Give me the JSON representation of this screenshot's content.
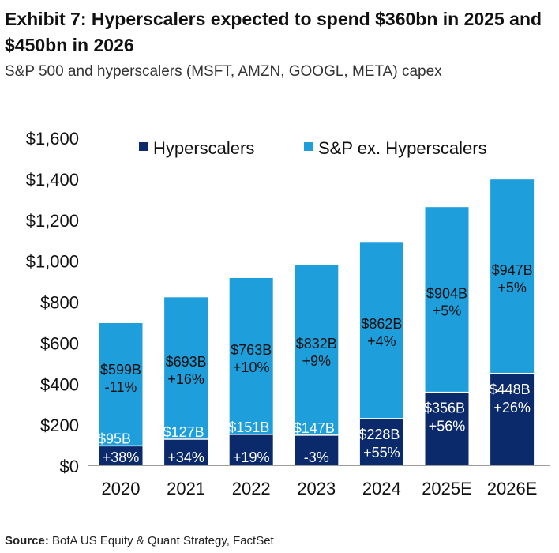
{
  "header": {
    "title": "Exhibit 7: Hyperscalers expected to spend $360bn in 2025 and $450bn in 2026",
    "subtitle": "S&P 500 and hyperscalers (MSFT, AMZN, GOOGL, META) capex"
  },
  "footer": {
    "source_label": "Source:",
    "source_text": "BofA US Equity & Quant Strategy, FactSet"
  },
  "colors": {
    "hyperscalers": "#0b2a6b",
    "sp_ex": "#1e9fdc",
    "axis": "#7f7f7f"
  },
  "chart_data": {
    "type": "bar",
    "stacked": true,
    "categories": [
      "2020",
      "2021",
      "2022",
      "2023",
      "2024",
      "2025E",
      "2026E"
    ],
    "ylim": [
      0,
      1600
    ],
    "yticks": [
      0,
      200,
      400,
      600,
      800,
      1000,
      1200,
      1400,
      1600
    ],
    "ytick_labels": [
      "$0",
      "$200",
      "$400",
      "$600",
      "$800",
      "$1,000",
      "$1,200",
      "$1,400",
      "$1,600"
    ],
    "legend": "top",
    "grid": false,
    "series": [
      {
        "name": "Hyperscalers",
        "values": [
          95,
          127,
          151,
          147,
          228,
          356,
          448
        ],
        "labels": [
          "$95B",
          "$127B",
          "$151B",
          "$147B",
          "$228B",
          "$356B",
          "$448B"
        ],
        "growth": [
          "+38%",
          "+34%",
          "+19%",
          "-3%",
          "+55%",
          "+56%",
          "+26%"
        ]
      },
      {
        "name": "S&P ex. Hyperscalers",
        "values": [
          599,
          693,
          763,
          832,
          862,
          904,
          947
        ],
        "labels": [
          "$599B",
          "$693B",
          "$763B",
          "$832B",
          "$862B",
          "$904B",
          "$947B"
        ],
        "growth": [
          "-11%",
          "+16%",
          "+10%",
          "+9%",
          "+4%",
          "+5%",
          "+5%"
        ]
      }
    ]
  }
}
